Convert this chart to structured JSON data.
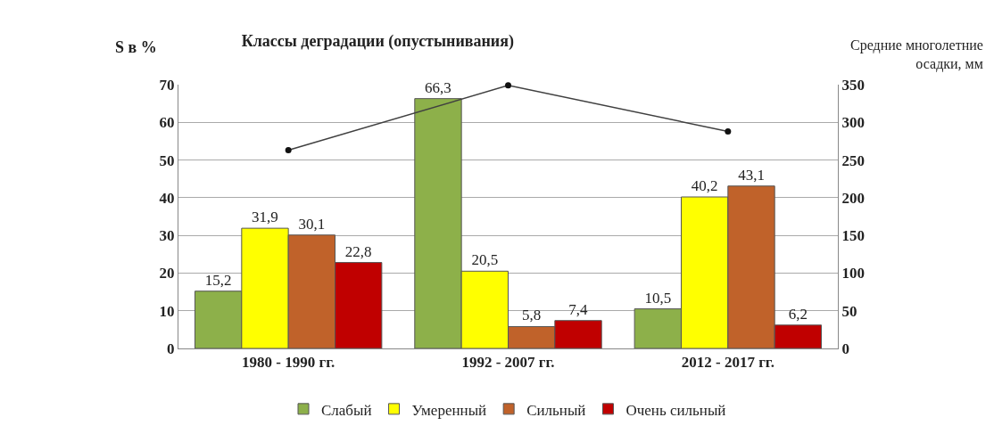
{
  "chart_data": {
    "type": "bar",
    "title": "Классы деградации (опустынивания)",
    "ylabel": "S в %",
    "y2label": "Средние многолетние осадки, мм",
    "categories": [
      "1980 - 1990 гг.",
      "1992 - 2007 гг.",
      "2012 - 2017 гг."
    ],
    "series": [
      {
        "name": "Слабый",
        "color": "#8db04a",
        "values": [
          15.2,
          66.3,
          10.5
        ],
        "value_labels": [
          "15,2",
          "66,3",
          "10,5"
        ]
      },
      {
        "name": "Умеренный",
        "color": "#ffff00",
        "values": [
          31.9,
          20.5,
          40.2
        ],
        "value_labels": [
          "31,9",
          "20,5",
          "40,2"
        ]
      },
      {
        "name": "Сильный",
        "color": "#c0622a",
        "values": [
          30.1,
          5.8,
          43.1
        ],
        "value_labels": [
          "30,1",
          "5,8",
          "43,1"
        ]
      },
      {
        "name": "Очень сильный",
        "color": "#c00000",
        "values": [
          22.8,
          7.4,
          6.2
        ],
        "value_labels": [
          "22,8",
          "7,4",
          "6,2"
        ]
      },
      {
        "type": "line",
        "axis": "y2",
        "color": "#404040",
        "marker": "circle",
        "values": [
          263,
          349,
          288
        ]
      }
    ],
    "ylim": [
      0,
      70
    ],
    "yticks": [
      0,
      10,
      20,
      30,
      40,
      50,
      60,
      70
    ],
    "y2lim": [
      0,
      350
    ],
    "y2ticks": [
      0,
      50,
      100,
      150,
      200,
      250,
      300,
      350
    ],
    "grid": "y",
    "legend": "bottom"
  }
}
